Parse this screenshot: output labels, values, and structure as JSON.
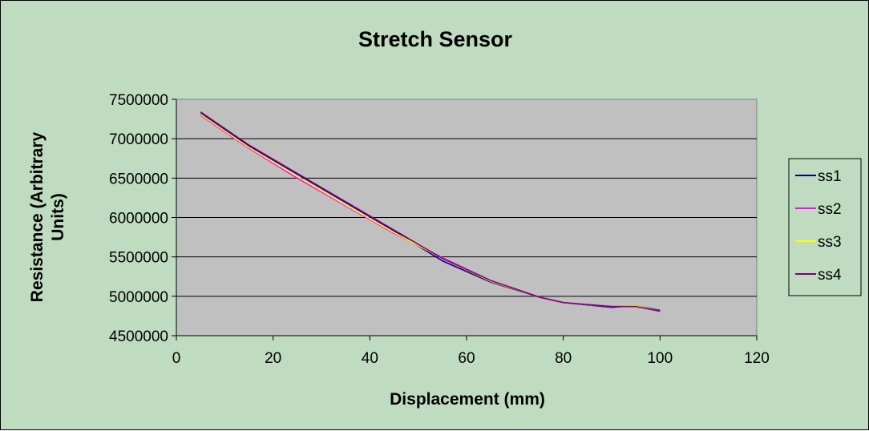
{
  "chart_data": {
    "type": "line",
    "title": "Stretch Sensor",
    "xlabel": "Displacement (mm)",
    "ylabel_lines": [
      "Resistance (Arbitrary",
      "Units)"
    ],
    "xlim": [
      0,
      120
    ],
    "ylim": [
      4500000,
      7500000
    ],
    "x_ticks": [
      "0",
      "20",
      "40",
      "60",
      "80",
      "100",
      "120"
    ],
    "y_ticks": [
      "4500000",
      "5000000",
      "5500000",
      "6000000",
      "6500000",
      "7000000",
      "7500000"
    ],
    "grid": true,
    "legend_position": "right",
    "x": [
      5,
      15,
      25,
      35,
      45,
      55,
      65,
      75,
      80,
      90,
      95,
      100
    ],
    "series": [
      {
        "name": "ss1",
        "color": "#000080",
        "values": [
          7320000,
          6910000,
          6550000,
          6190000,
          5830000,
          5450000,
          5180000,
          4990000,
          4920000,
          4860000,
          4880000,
          4820000
        ]
      },
      {
        "name": "ss2",
        "color": "#ff00ff",
        "values": [
          7300000,
          6880000,
          6500000,
          6150000,
          5800000,
          5490000,
          5200000,
          4990000,
          4920000,
          4870000,
          4870000,
          4810000
        ]
      },
      {
        "name": "ss3",
        "color": "#ffff00",
        "values": [
          7310000,
          6890000,
          6520000,
          6160000,
          5810000,
          5480000,
          5190000,
          4990000,
          4920000,
          4870000,
          4880000,
          4810000
        ]
      },
      {
        "name": "ss4",
        "color": "#800080",
        "values": [
          7340000,
          6920000,
          6560000,
          6200000,
          5840000,
          5480000,
          5200000,
          4990000,
          4920000,
          4870000,
          4870000,
          4810000
        ]
      }
    ]
  }
}
